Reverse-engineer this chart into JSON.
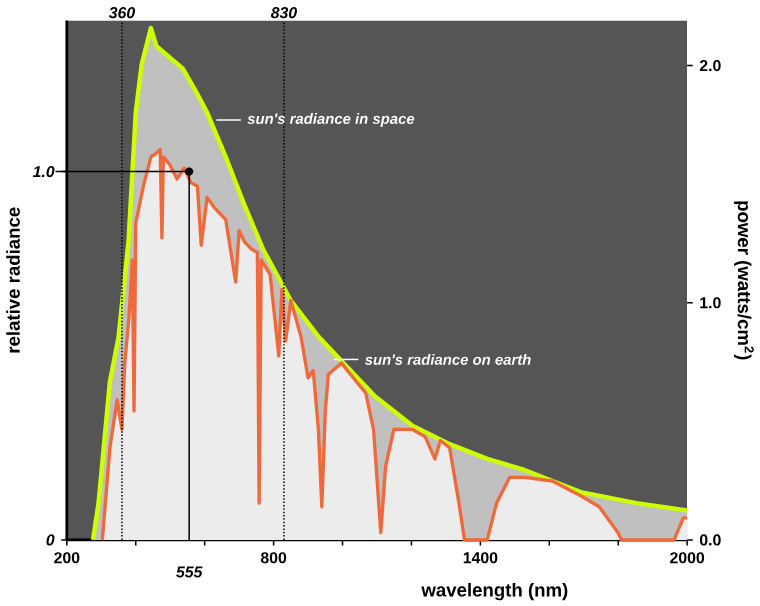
{
  "chart_data": {
    "type": "area",
    "xlabel": "wavelength (nm)",
    "ylabel": "relative radiance",
    "y2label": "power (watts/cm$^{2}$)",
    "xlim": [
      200,
      2000
    ],
    "xticks": [
      200,
      {
        "value": 400,
        "label": null
      },
      {
        "value": 600,
        "label": null
      },
      800,
      {
        "value": 1000,
        "label": null
      },
      {
        "value": 1200,
        "label": null
      },
      1400,
      {
        "value": 1600,
        "label": null
      },
      {
        "value": 1800,
        "label": null
      },
      2000
    ],
    "ylim": [
      0,
      1.41
    ],
    "yticks": [
      0,
      {
        "value": 1,
        "label": "1.0"
      }
    ],
    "y2lim": [
      0,
      2.19
    ],
    "y2ticks": [
      {
        "value": 0,
        "label": "0.0"
      },
      {
        "value": 1,
        "label": "1.0"
      },
      {
        "value": 2,
        "label": "2.0"
      }
    ],
    "grid": "y2",
    "series": [
      {
        "color": "#ccff00",
        "x": [
          276,
          292,
          325,
          350,
          379,
          400,
          417,
          444,
          460,
          498,
          536,
          579,
          607,
          661,
          715,
          769,
          850,
          932,
          1013,
          1094,
          1203,
          1311,
          1420,
          1528,
          1691,
          1853,
          2000
        ],
        "values": [
          0,
          0.1,
          0.43,
          0.55,
          0.81,
          1.16,
          1.29,
          1.39,
          1.34,
          1.31,
          1.28,
          1.21,
          1.16,
          1.04,
          0.91,
          0.79,
          0.65,
          0.55,
          0.47,
          0.39,
          0.31,
          0.26,
          0.22,
          0.19,
          0.13,
          0.1,
          0.08
        ]
      },
      {
        "color": "#ee6a3c",
        "x": [
          303,
          325,
          346,
          360,
          368,
          380,
          390,
          395,
          400,
          422,
          444,
          460,
          471,
          476,
          480,
          498,
          520,
          541,
          560,
          579,
          590,
          607,
          630,
          661,
          690,
          700,
          715,
          735,
          753,
          758,
          764,
          790,
          815,
          824,
          835,
          850,
          880,
          900,
          915,
          930,
          940,
          950,
          959,
          997,
          1040,
          1067,
          1090,
          1111,
          1125,
          1149,
          1203,
          1240,
          1268,
          1284,
          1311,
          1338,
          1354,
          1420,
          1447,
          1485,
          1528,
          1609,
          1691,
          1745,
          1799,
          1810,
          1962,
          1989,
          2000
        ],
        "values": [
          0,
          0.25,
          0.38,
          0.3,
          0.48,
          0.6,
          0.76,
          0.35,
          0.86,
          0.96,
          1.04,
          1.05,
          1.06,
          0.82,
          1.04,
          1.02,
          0.98,
          1.01,
          0.97,
          0.96,
          0.8,
          0.93,
          0.9,
          0.87,
          0.7,
          0.84,
          0.81,
          0.79,
          0.78,
          0.1,
          0.76,
          0.72,
          0.5,
          0.68,
          0.54,
          0.65,
          0.55,
          0.44,
          0.46,
          0.3,
          0.09,
          0.35,
          0.45,
          0.48,
          0.43,
          0.4,
          0.3,
          0.02,
          0.2,
          0.3,
          0.3,
          0.28,
          0.22,
          0.27,
          0.25,
          0.1,
          0,
          0,
          0.1,
          0.17,
          0.17,
          0.16,
          0.12,
          0.09,
          0.02,
          0,
          0,
          0.06,
          0.06
        ]
      },
      {
        "type": "scatter",
        "marker": "circle",
        "color": "#000000",
        "x": [
          555
        ],
        "values": [
          1.0
        ]
      }
    ],
    "ref_lines": [
      {
        "axis": "x",
        "value": 360,
        "label": "360",
        "line_style": "dotted",
        "color": "#000000"
      },
      {
        "axis": "x",
        "value": 830,
        "label": "830",
        "line_style": "dotted",
        "color": "#000000"
      },
      {
        "axis": "x",
        "value": 555,
        "label": "555",
        "line_style": "solid",
        "color": "#000000"
      },
      {
        "axis": "y",
        "value": 1.0,
        "line_style": "solid",
        "color": "#000000"
      }
    ],
    "annotations": [
      {
        "text": "sun's radiance in space",
        "x": 634,
        "y": 1.14
      },
      {
        "text": "sun's radiance on earth",
        "x": 975,
        "y": 0.49
      }
    ]
  }
}
